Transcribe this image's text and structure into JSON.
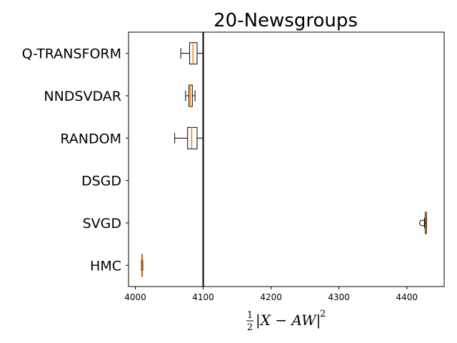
{
  "chart_data": {
    "type": "boxplot",
    "orientation": "horizontal",
    "title": "20-Newsgroups",
    "xlabel": {
      "frac_num": "1",
      "frac_den": "2",
      "expr": "|X − AW|",
      "exp": "2"
    },
    "xlim": [
      3990,
      4455
    ],
    "xticks": [
      4000,
      4100,
      4200,
      4300,
      4400
    ],
    "xtick_labels": [
      "4000",
      "4100",
      "4200",
      "4300",
      "4400"
    ],
    "vline": 4100,
    "categories": [
      "Q-TRANSFORM",
      "NNDSVDAR",
      "RANDOM",
      "DSGD",
      "SVGD",
      "HMC"
    ],
    "boxes": [
      {
        "label": "Q-TRANSFORM",
        "whislo": 4067,
        "q1": 4080,
        "med": 4085,
        "q3": 4091,
        "whishi": 4100,
        "fliers": []
      },
      {
        "label": "NNDSVDAR",
        "whislo": 4074,
        "q1": 4079,
        "med": 4081,
        "q3": 4084,
        "whishi": 4088,
        "fliers": []
      },
      {
        "label": "RANDOM",
        "whislo": 4058,
        "q1": 4077,
        "med": 4083,
        "q3": 4091,
        "whishi": 4100,
        "fliers": []
      },
      {
        "label": "DSGD",
        "empty": true
      },
      {
        "label": "SVGD",
        "whislo": 4426,
        "q1": 4427,
        "med": 4428,
        "q3": 4429,
        "whishi": 4429,
        "fliers": [
          4423
        ]
      },
      {
        "label": "HMC",
        "whislo": 4009,
        "q1": 4009.5,
        "med": 4010,
        "q3": 4010.5,
        "whishi": 4011,
        "fliers": []
      }
    ],
    "colors": {
      "box": "#000000",
      "median": "#ff7f0e",
      "vline": "#000000"
    }
  }
}
